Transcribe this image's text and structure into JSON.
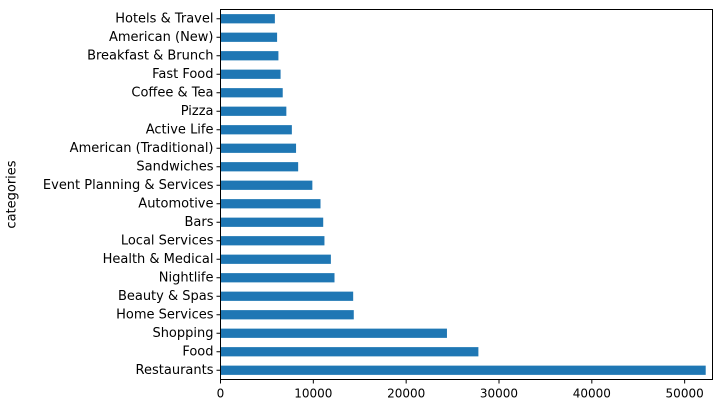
{
  "chart_data": {
    "type": "bar",
    "orientation": "horizontal",
    "ylabel": "categories",
    "xlabel": "",
    "title": "",
    "categories": [
      "Restaurants",
      "Food",
      "Shopping",
      "Home Services",
      "Beauty & Spas",
      "Nightlife",
      "Health & Medical",
      "Local Services",
      "Bars",
      "Automotive",
      "Event Planning & Services",
      "Sandwiches",
      "American (Traditional)",
      "Active Life",
      "Pizza",
      "Coffee & Tea",
      "Fast Food",
      "Breakfast & Brunch",
      "American (New)",
      "Hotels & Travel"
    ],
    "values": [
      52268,
      27781,
      24395,
      14356,
      14292,
      12281,
      11890,
      11198,
      11065,
      10773,
      9895,
      8366,
      8139,
      7687,
      7093,
      6703,
      6472,
      6239,
      6097,
      5857
    ],
    "xlim": [
      0,
      53000
    ],
    "xticks": [
      0,
      10000,
      20000,
      30000,
      40000,
      50000
    ],
    "xtick_labels": [
      "0",
      "10000",
      "20000",
      "30000",
      "40000",
      "50000"
    ],
    "bar_color": "#1f77b4",
    "grid": false
  }
}
